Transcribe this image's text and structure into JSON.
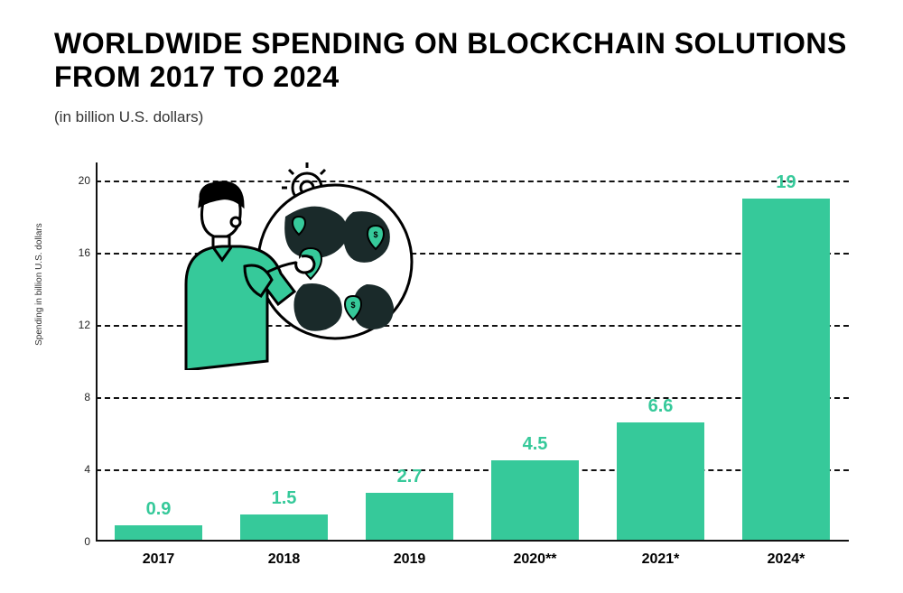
{
  "title": "WORLDWIDE SPENDING ON BLOCKCHAIN SOLUTIONS FROM 2017 TO 2024",
  "subtitle": "(in billion U.S. dollars)",
  "chart": {
    "type": "bar",
    "ylabel": "Spending in billion U.S. dollars",
    "ylim": [
      0,
      21
    ],
    "yticks": [
      0,
      4,
      8,
      12,
      16,
      20
    ],
    "categories": [
      "2017",
      "2018",
      "2019",
      "2020**",
      "2021*",
      "2024*"
    ],
    "values": [
      0.9,
      1.5,
      2.7,
      4.5,
      6.6,
      19
    ],
    "value_labels": [
      "0.9",
      "1.5",
      "2.7",
      "4.5",
      "6.6",
      "19"
    ],
    "bar_color": "#36c99a",
    "value_label_color": "#36c99a",
    "grid_color": "#111111",
    "grid_style": "dashed",
    "background_color": "#ffffff",
    "axis_color": "#111111",
    "bar_width_ratio": 0.7,
    "title_fontsize": 32,
    "title_fontweight": 900,
    "subtitle_fontsize": 17,
    "ylabel_fontsize": 10,
    "ytick_fontsize": 12,
    "xlabel_fontsize": 16,
    "xlabel_fontweight": 700,
    "value_label_fontsize": 20,
    "value_label_fontweight": 700
  },
  "illustration": {
    "description": "Woman in green shirt pointing to a globe with dollar map pins and a gear behind it",
    "shirt_color": "#36c99a",
    "globe_land_color": "#1a2a2a",
    "pin_color": "#36c99a",
    "outline_color": "#000000"
  }
}
